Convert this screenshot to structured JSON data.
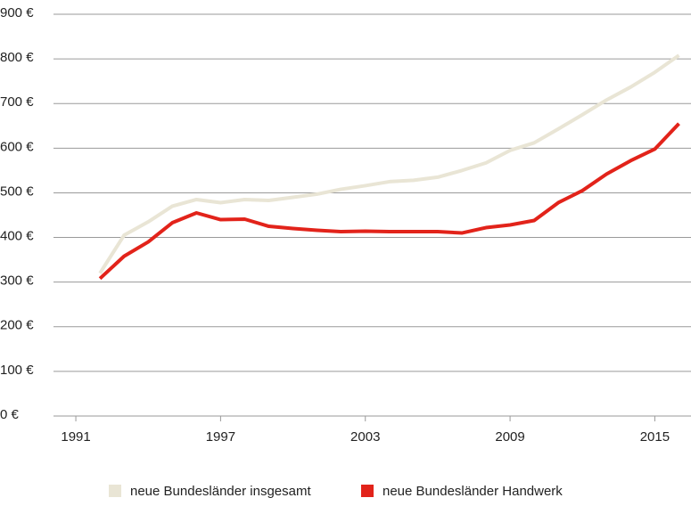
{
  "chart_data": {
    "type": "line",
    "x": [
      1992,
      1993,
      1994,
      1995,
      1996,
      1997,
      1998,
      1999,
      2000,
      2001,
      2002,
      2003,
      2004,
      2005,
      2006,
      2007,
      2008,
      2009,
      2010,
      2011,
      2012,
      2013,
      2014,
      2015,
      2016
    ],
    "series": [
      {
        "name": "neue Bundesländer insgesamt",
        "color": "#e9e5d5",
        "values": [
          320,
          405,
          435,
          470,
          485,
          478,
          485,
          483,
          490,
          497,
          508,
          516,
          525,
          528,
          535,
          550,
          567,
          595,
          612,
          643,
          675,
          708,
          737,
          770,
          808
        ]
      },
      {
        "name": "neue Bundesländer Handwerk",
        "color": "#e2231a",
        "values": [
          308,
          358,
          390,
          433,
          455,
          440,
          441,
          425,
          420,
          416,
          413,
          414,
          413,
          413,
          413,
          410,
          422,
          428,
          438,
          478,
          505,
          542,
          572,
          598,
          655
        ]
      }
    ],
    "xlim": [
      1990,
      2016.5
    ],
    "xticks": [
      1991,
      1997,
      2003,
      2009,
      2015
    ],
    "ylim": [
      0,
      900
    ],
    "yticks": [
      {
        "value": 0,
        "label": "0 €"
      },
      {
        "value": 100,
        "label": "100 €"
      },
      {
        "value": 200,
        "label": "200 €"
      },
      {
        "value": 300,
        "label": "300 €"
      },
      {
        "value": 400,
        "label": "400 €"
      },
      {
        "value": 500,
        "label": "500 €"
      },
      {
        "value": 600,
        "label": "600 €"
      },
      {
        "value": 700,
        "label": "700 €"
      },
      {
        "value": 800,
        "label": "800 €"
      },
      {
        "value": 900,
        "label": "900 €"
      }
    ],
    "grid": true,
    "legend": "bottom"
  }
}
